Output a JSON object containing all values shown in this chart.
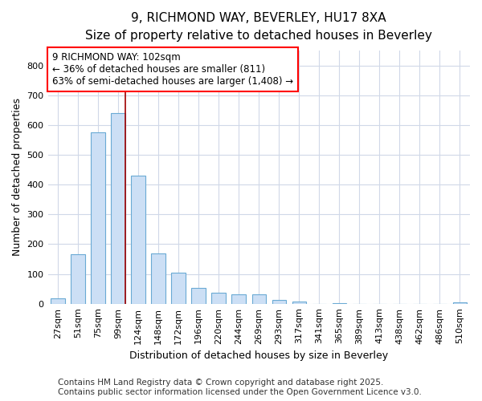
{
  "title1": "9, RICHMOND WAY, BEVERLEY, HU17 8XA",
  "title2": "Size of property relative to detached houses in Beverley",
  "xlabel": "Distribution of detached houses by size in Beverley",
  "ylabel": "Number of detached properties",
  "categories": [
    "27sqm",
    "51sqm",
    "75sqm",
    "99sqm",
    "124sqm",
    "148sqm",
    "172sqm",
    "196sqm",
    "220sqm",
    "244sqm",
    "269sqm",
    "293sqm",
    "317sqm",
    "341sqm",
    "365sqm",
    "389sqm",
    "413sqm",
    "438sqm",
    "462sqm",
    "486sqm",
    "510sqm"
  ],
  "values": [
    18,
    165,
    575,
    640,
    430,
    170,
    105,
    52,
    38,
    32,
    32,
    13,
    8,
    0,
    3,
    0,
    0,
    0,
    0,
    0,
    4
  ],
  "bar_color": "#ccdff5",
  "bar_edge_color": "#6aaad4",
  "annotation_text_line1": "9 RICHMOND WAY: 102sqm",
  "annotation_text_line2": "← 36% of detached houses are smaller (811)",
  "annotation_text_line3": "63% of semi-detached houses are larger (1,408) →",
  "vline_x_index": 3,
  "vline_color": "#a00000",
  "ylim": [
    0,
    850
  ],
  "yticks": [
    0,
    100,
    200,
    300,
    400,
    500,
    600,
    700,
    800
  ],
  "footer1": "Contains HM Land Registry data © Crown copyright and database right 2025.",
  "footer2": "Contains public sector information licensed under the Open Government Licence v3.0.",
  "bg_color": "#ffffff",
  "plot_bg_color": "#ffffff",
  "grid_color": "#d0d8e8",
  "title_fontsize": 11,
  "subtitle_fontsize": 10,
  "axis_label_fontsize": 9,
  "tick_fontsize": 8,
  "annotation_fontsize": 8.5,
  "footer_fontsize": 7.5
}
